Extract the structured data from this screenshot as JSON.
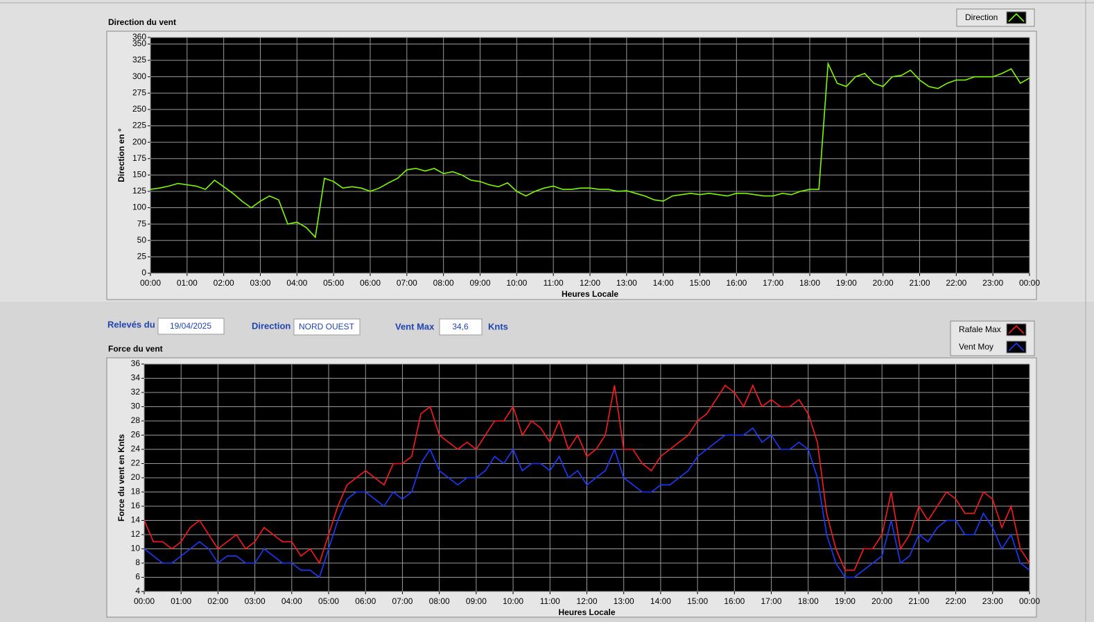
{
  "chart_data": [
    {
      "type": "line",
      "title": "Direction du vent",
      "y_label": "Direction en °",
      "x_label": "Heures Locale",
      "grid": true,
      "x": [
        0,
        0.25,
        0.5,
        0.75,
        1,
        1.25,
        1.5,
        1.75,
        2,
        2.25,
        2.5,
        2.75,
        3,
        3.25,
        3.5,
        3.75,
        4,
        4.25,
        4.5,
        4.75,
        5,
        5.25,
        5.5,
        5.75,
        6,
        6.25,
        6.5,
        6.75,
        7,
        7.25,
        7.5,
        7.75,
        8,
        8.25,
        8.5,
        8.75,
        9,
        9.25,
        9.5,
        9.75,
        10,
        10.25,
        10.5,
        10.75,
        11,
        11.25,
        11.5,
        11.75,
        12,
        12.25,
        12.5,
        12.75,
        13,
        13.25,
        13.5,
        13.75,
        14,
        14.25,
        14.5,
        14.75,
        15,
        15.25,
        15.5,
        15.75,
        16,
        16.25,
        16.5,
        16.75,
        17,
        17.25,
        17.5,
        17.75,
        18,
        18.25,
        18.5,
        18.75,
        19,
        19.25,
        19.5,
        19.75,
        20,
        20.25,
        20.5,
        20.75,
        21,
        21.25,
        21.5,
        21.75,
        22,
        22.25,
        22.5,
        22.75,
        23,
        23.25,
        23.5,
        23.75,
        24
      ],
      "series": [
        {
          "name": "Direction",
          "color": "#7cfc00",
          "values": [
            128,
            130,
            133,
            137,
            135,
            133,
            128,
            142,
            132,
            122,
            110,
            100,
            110,
            118,
            112,
            75,
            78,
            70,
            55,
            145,
            140,
            130,
            132,
            130,
            125,
            130,
            138,
            145,
            158,
            160,
            156,
            160,
            152,
            155,
            150,
            142,
            140,
            135,
            132,
            138,
            125,
            118,
            125,
            130,
            133,
            128,
            128,
            130,
            130,
            128,
            128,
            125,
            126,
            122,
            118,
            112,
            110,
            118,
            120,
            122,
            120,
            122,
            120,
            118,
            122,
            122,
            120,
            118,
            118,
            122,
            120,
            125,
            128,
            128,
            320,
            290,
            285,
            300,
            305,
            290,
            285,
            300,
            302,
            310,
            295,
            285,
            282,
            290,
            295,
            295,
            300,
            300,
            300,
            305,
            312,
            290,
            298
          ]
        }
      ],
      "xlim": [
        0,
        24
      ],
      "xticks": [
        {
          "value": 0,
          "label": "00:00"
        },
        {
          "value": 1,
          "label": "01:00"
        },
        {
          "value": 2,
          "label": "02:00"
        },
        {
          "value": 3,
          "label": "03:00"
        },
        {
          "value": 4,
          "label": "04:00"
        },
        {
          "value": 5,
          "label": "05:00"
        },
        {
          "value": 6,
          "label": "06:00"
        },
        {
          "value": 7,
          "label": "07:00"
        },
        {
          "value": 8,
          "label": "08:00"
        },
        {
          "value": 9,
          "label": "09:00"
        },
        {
          "value": 10,
          "label": "10:00"
        },
        {
          "value": 11,
          "label": "11:00"
        },
        {
          "value": 12,
          "label": "12:00"
        },
        {
          "value": 13,
          "label": "13:00"
        },
        {
          "value": 14,
          "label": "14:00"
        },
        {
          "value": 15,
          "label": "15:00"
        },
        {
          "value": 16,
          "label": "16:00"
        },
        {
          "value": 17,
          "label": "17:00"
        },
        {
          "value": 18,
          "label": "18:00"
        },
        {
          "value": 19,
          "label": "19:00"
        },
        {
          "value": 20,
          "label": "20:00"
        },
        {
          "value": 21,
          "label": "21:00"
        },
        {
          "value": 22,
          "label": "22:00"
        },
        {
          "value": 23,
          "label": "23:00"
        },
        {
          "value": 24,
          "label": "00:00"
        }
      ],
      "ylim": [
        0,
        360
      ],
      "yticks": [
        0,
        25,
        50,
        75,
        100,
        125,
        150,
        175,
        200,
        225,
        250,
        275,
        300,
        325,
        350,
        360
      ]
    },
    {
      "type": "line",
      "title": "Force du vent",
      "y_label": "Force du vent en Knts",
      "x_label": "Heures Locale",
      "grid": true,
      "x": [
        0,
        0.25,
        0.5,
        0.75,
        1,
        1.25,
        1.5,
        1.75,
        2,
        2.25,
        2.5,
        2.75,
        3,
        3.25,
        3.5,
        3.75,
        4,
        4.25,
        4.5,
        4.75,
        5,
        5.25,
        5.5,
        5.75,
        6,
        6.25,
        6.5,
        6.75,
        7,
        7.25,
        7.5,
        7.75,
        8,
        8.25,
        8.5,
        8.75,
        9,
        9.25,
        9.5,
        9.75,
        10,
        10.25,
        10.5,
        10.75,
        11,
        11.25,
        11.5,
        11.75,
        12,
        12.25,
        12.5,
        12.75,
        13,
        13.25,
        13.5,
        13.75,
        14,
        14.25,
        14.5,
        14.75,
        15,
        15.25,
        15.5,
        15.75,
        16,
        16.25,
        16.5,
        16.75,
        17,
        17.25,
        17.5,
        17.75,
        18,
        18.25,
        18.5,
        18.75,
        19,
        19.25,
        19.5,
        19.75,
        20,
        20.25,
        20.5,
        20.75,
        21,
        21.25,
        21.5,
        21.75,
        22,
        22.25,
        22.5,
        22.75,
        23,
        23.25,
        23.5,
        23.75,
        24
      ],
      "series": [
        {
          "name": "Rafale Max",
          "color": "#ff1a1a",
          "values": [
            14,
            11,
            11,
            10,
            11,
            13,
            14,
            12,
            10,
            11,
            12,
            10,
            11,
            13,
            12,
            11,
            11,
            9,
            10,
            8,
            12,
            16,
            19,
            20,
            21,
            20,
            19,
            22,
            22,
            23,
            29,
            30,
            26,
            25,
            24,
            25,
            24,
            26,
            28,
            28,
            30,
            26,
            28,
            27,
            25,
            28,
            24,
            26,
            23,
            24,
            26,
            33,
            24,
            24,
            22,
            21,
            23,
            24,
            25,
            26,
            28,
            29,
            31,
            33,
            32,
            30,
            33,
            30,
            31,
            30,
            30,
            31,
            29,
            25,
            15,
            10,
            7,
            7,
            10,
            10,
            12,
            18,
            10,
            12,
            16,
            14,
            16,
            18,
            17,
            15,
            15,
            18,
            17,
            13,
            16,
            10,
            8
          ]
        },
        {
          "name": "Vent Moy",
          "color": "#1a3cff",
          "values": [
            10,
            9,
            8,
            8,
            9,
            10,
            11,
            10,
            8,
            9,
            9,
            8,
            8,
            10,
            9,
            8,
            8,
            7,
            7,
            6,
            10,
            14,
            17,
            18,
            18,
            17,
            16,
            18,
            17,
            18,
            22,
            24,
            21,
            20,
            19,
            20,
            20,
            21,
            23,
            22,
            24,
            21,
            22,
            22,
            21,
            23,
            20,
            21,
            19,
            20,
            21,
            24,
            20,
            19,
            18,
            18,
            19,
            19,
            20,
            21,
            23,
            24,
            25,
            26,
            26,
            26,
            27,
            25,
            26,
            24,
            24,
            25,
            24,
            20,
            12,
            8,
            6,
            6,
            7,
            8,
            9,
            14,
            8,
            9,
            12,
            11,
            13,
            14,
            14,
            12,
            12,
            15,
            13,
            10,
            12,
            8,
            7
          ]
        }
      ],
      "xlim": [
        0,
        24
      ],
      "xticks": [
        {
          "value": 0,
          "label": "00:00"
        },
        {
          "value": 1,
          "label": "01:00"
        },
        {
          "value": 2,
          "label": "02:00"
        },
        {
          "value": 3,
          "label": "03:00"
        },
        {
          "value": 4,
          "label": "04:00"
        },
        {
          "value": 5,
          "label": "05:00"
        },
        {
          "value": 6,
          "label": "06:00"
        },
        {
          "value": 7,
          "label": "07:00"
        },
        {
          "value": 8,
          "label": "08:00"
        },
        {
          "value": 9,
          "label": "09:00"
        },
        {
          "value": 10,
          "label": "10:00"
        },
        {
          "value": 11,
          "label": "11:00"
        },
        {
          "value": 12,
          "label": "12:00"
        },
        {
          "value": 13,
          "label": "13:00"
        },
        {
          "value": 14,
          "label": "14:00"
        },
        {
          "value": 15,
          "label": "15:00"
        },
        {
          "value": 16,
          "label": "16:00"
        },
        {
          "value": 17,
          "label": "17:00"
        },
        {
          "value": 18,
          "label": "18:00"
        },
        {
          "value": 19,
          "label": "19:00"
        },
        {
          "value": 20,
          "label": "20:00"
        },
        {
          "value": 21,
          "label": "21:00"
        },
        {
          "value": 22,
          "label": "22:00"
        },
        {
          "value": 23,
          "label": "23:00"
        },
        {
          "value": 24,
          "label": "00:00"
        }
      ],
      "ylim": [
        4,
        36
      ],
      "yticks": [
        4,
        6,
        8,
        10,
        12,
        14,
        16,
        18,
        20,
        22,
        24,
        26,
        28,
        30,
        32,
        34,
        36
      ]
    }
  ],
  "controls": {
    "date_label": "Relevés du",
    "date": "19/04/2025",
    "direction_label": "Direction",
    "direction": "NORD OUEST",
    "max_label": "Vent Max",
    "max": "34,6",
    "max_unit": "Knts"
  }
}
